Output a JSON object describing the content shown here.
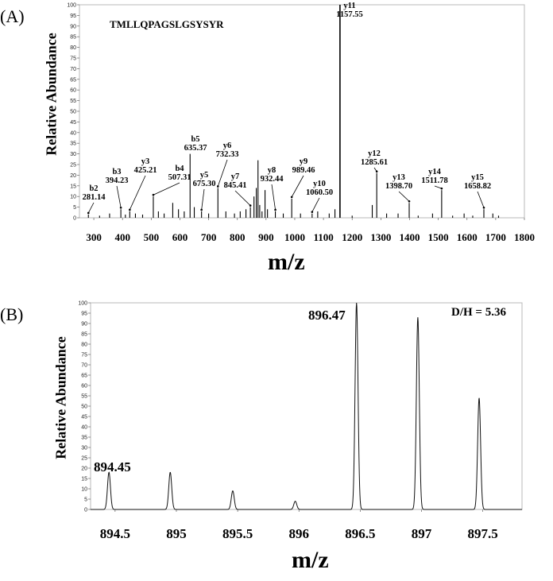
{
  "panels": {
    "a_label": "(A)",
    "b_label": "(B)"
  },
  "chart_data": [
    {
      "type": "bar",
      "title": "TMLLQPAGSLGSYSYR",
      "xlabel": "m/z",
      "ylabel": "Relative Abundance",
      "xlim": [
        250,
        1800
      ],
      "ylim": [
        0,
        100
      ],
      "xticks": [
        "300",
        "400",
        "500",
        "600",
        "700",
        "800",
        "900",
        "1000",
        "1100",
        "1200",
        "1300",
        "1400",
        "1500",
        "1600",
        "1700",
        "1800"
      ],
      "yticks": [
        "0",
        "5",
        "10",
        "15",
        "20",
        "25",
        "30",
        "35",
        "40",
        "45",
        "50",
        "55",
        "60",
        "65",
        "70",
        "75",
        "80",
        "85",
        "90",
        "95",
        "100"
      ],
      "annotations": [
        {
          "ion": "b2",
          "mz": "281.14",
          "x": 281.14,
          "y": 1.5
        },
        {
          "ion": "b3",
          "mz": "394.23",
          "x": 394.23,
          "y": 4
        },
        {
          "ion": "y3",
          "mz": "425.21",
          "x": 425.21,
          "y": 3
        },
        {
          "ion": "b4",
          "mz": "507.31",
          "x": 507.31,
          "y": 10
        },
        {
          "ion": "b5",
          "mz": "635.37",
          "x": 635.37,
          "y": 30
        },
        {
          "ion": "y5",
          "mz": "675.30",
          "x": 675.3,
          "y": 3
        },
        {
          "ion": "y6",
          "mz": "732.33",
          "x": 732.33,
          "y": 14
        },
        {
          "ion": "y7",
          "mz": "845.41",
          "x": 845.41,
          "y": 5
        },
        {
          "ion": "y8",
          "mz": "932.44",
          "x": 932.44,
          "y": 3
        },
        {
          "ion": "y9",
          "mz": "989.46",
          "x": 989.46,
          "y": 9
        },
        {
          "ion": "y10",
          "mz": "1060.50",
          "x": 1060.5,
          "y": 2
        },
        {
          "ion": "y11",
          "mz": "1157.55",
          "x": 1157.55,
          "y": 100
        },
        {
          "ion": "y12",
          "mz": "1285.61",
          "x": 1285.61,
          "y": 21
        },
        {
          "ion": "y13",
          "mz": "1398.70",
          "x": 1398.7,
          "y": 7
        },
        {
          "ion": "y14",
          "mz": "1511.78",
          "x": 1511.78,
          "y": 13
        },
        {
          "ion": "y15",
          "mz": "1658.82",
          "x": 1658.82,
          "y": 4
        }
      ],
      "peaks": [
        {
          "x": 281.14,
          "y": 1.5
        },
        {
          "x": 320,
          "y": 1
        },
        {
          "x": 355,
          "y": 2
        },
        {
          "x": 394.23,
          "y": 4
        },
        {
          "x": 410,
          "y": 1.5
        },
        {
          "x": 425.21,
          "y": 3
        },
        {
          "x": 445,
          "y": 2
        },
        {
          "x": 470,
          "y": 1.5
        },
        {
          "x": 507.31,
          "y": 10
        },
        {
          "x": 525,
          "y": 3
        },
        {
          "x": 545,
          "y": 2
        },
        {
          "x": 575,
          "y": 7
        },
        {
          "x": 595,
          "y": 4
        },
        {
          "x": 615,
          "y": 3
        },
        {
          "x": 635.37,
          "y": 30
        },
        {
          "x": 650,
          "y": 5
        },
        {
          "x": 675.3,
          "y": 3
        },
        {
          "x": 700,
          "y": 2
        },
        {
          "x": 732.33,
          "y": 14
        },
        {
          "x": 760,
          "y": 3
        },
        {
          "x": 790,
          "y": 2
        },
        {
          "x": 810,
          "y": 3
        },
        {
          "x": 830,
          "y": 4
        },
        {
          "x": 845.41,
          "y": 5
        },
        {
          "x": 858,
          "y": 10
        },
        {
          "x": 866,
          "y": 14
        },
        {
          "x": 872,
          "y": 27
        },
        {
          "x": 878,
          "y": 6
        },
        {
          "x": 886,
          "y": 3
        },
        {
          "x": 896.47,
          "y": 13
        },
        {
          "x": 905,
          "y": 4
        },
        {
          "x": 932.44,
          "y": 3
        },
        {
          "x": 960,
          "y": 2
        },
        {
          "x": 989.46,
          "y": 9
        },
        {
          "x": 1020,
          "y": 2
        },
        {
          "x": 1060.5,
          "y": 2
        },
        {
          "x": 1080,
          "y": 3
        },
        {
          "x": 1120,
          "y": 2
        },
        {
          "x": 1140,
          "y": 4
        },
        {
          "x": 1157.55,
          "y": 100
        },
        {
          "x": 1200,
          "y": 1
        },
        {
          "x": 1270,
          "y": 6
        },
        {
          "x": 1285.61,
          "y": 21
        },
        {
          "x": 1320,
          "y": 2
        },
        {
          "x": 1360,
          "y": 2
        },
        {
          "x": 1398.7,
          "y": 7
        },
        {
          "x": 1430,
          "y": 1
        },
        {
          "x": 1480,
          "y": 2
        },
        {
          "x": 1511.78,
          "y": 13
        },
        {
          "x": 1550,
          "y": 1
        },
        {
          "x": 1590,
          "y": 2
        },
        {
          "x": 1620,
          "y": 1
        },
        {
          "x": 1658.82,
          "y": 4
        },
        {
          "x": 1690,
          "y": 2
        },
        {
          "x": 1710,
          "y": 1
        }
      ]
    },
    {
      "type": "line",
      "xlabel": "m/z",
      "ylabel": "Relative Abundance",
      "xlim": [
        894.3,
        897.82
      ],
      "ylim": [
        0,
        100
      ],
      "xticks": [
        "894.5",
        "895",
        "895.5",
        "896",
        "896.5",
        "897",
        "897.5"
      ],
      "yticks": [
        "0",
        "5",
        "10",
        "15",
        "20",
        "25",
        "30",
        "35",
        "40",
        "45",
        "50",
        "55",
        "60",
        "65",
        "70",
        "75",
        "80",
        "85",
        "90",
        "95",
        "100"
      ],
      "annotation": "D/H = 5.36",
      "peaks": [
        {
          "x": 894.45,
          "y": 18,
          "label": "894.45"
        },
        {
          "x": 894.95,
          "y": 18
        },
        {
          "x": 895.46,
          "y": 9
        },
        {
          "x": 895.97,
          "y": 4
        },
        {
          "x": 896.47,
          "y": 100,
          "label": "896.47"
        },
        {
          "x": 896.97,
          "y": 93
        },
        {
          "x": 897.47,
          "y": 54
        }
      ]
    }
  ]
}
